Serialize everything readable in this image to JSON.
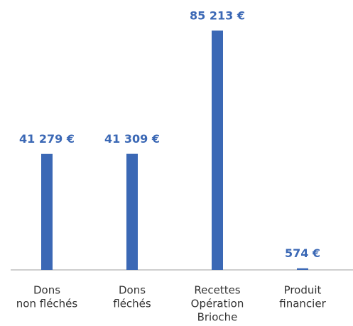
{
  "chart_data": {
    "type": "bar",
    "categories": [
      [
        "Dons",
        "non fléchés"
      ],
      [
        "Dons",
        "fléchés"
      ],
      [
        "Recettes",
        "Opération",
        "Brioche"
      ],
      [
        "Produit",
        "financier"
      ]
    ],
    "values": [
      41279,
      41309,
      85213,
      574
    ],
    "value_labels": [
      "41 279 €",
      "41 309 €",
      "85 213 €",
      "574 €"
    ],
    "color": "#3b68b5"
  }
}
